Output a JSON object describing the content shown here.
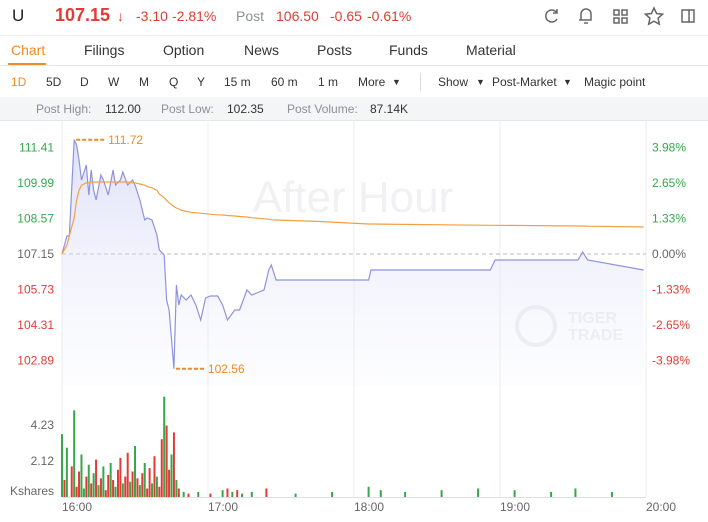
{
  "header": {
    "symbol": "U",
    "price": "107.15",
    "change": "-3.10",
    "change_pct": "-2.81%",
    "session": "Post",
    "post_price": "106.50",
    "post_change": "-0.65",
    "post_change_pct": "-0.61%"
  },
  "tabs": [
    "Chart",
    "Filings",
    "Option",
    "News",
    "Posts",
    "Funds",
    "Material"
  ],
  "periods": [
    "1D",
    "5D",
    "D",
    "W",
    "M",
    "Q",
    "Y",
    "15 m",
    "60 m",
    "1 m",
    "More"
  ],
  "toolbar": [
    "Show",
    "Post-Market",
    "Magic point"
  ],
  "stats": [
    {
      "label": "Post High:",
      "value": "112.00"
    },
    {
      "label": "Post Low:",
      "value": "102.35"
    },
    {
      "label": "Post Volume:",
      "value": "87.14K"
    }
  ],
  "chart_data": {
    "type": "line",
    "x": [
      "16:00",
      "16:02",
      "16:03",
      "16:05",
      "16:06",
      "16:07",
      "16:08",
      "16:10",
      "16:11",
      "16:12",
      "16:13",
      "16:14",
      "16:16",
      "16:17",
      "16:19",
      "16:21",
      "16:22",
      "16:24",
      "16:25",
      "16:27",
      "16:29",
      "16:30",
      "16:32",
      "16:34",
      "16:35",
      "16:37",
      "16:39",
      "16:40",
      "16:42",
      "16:43",
      "16:44",
      "16:46",
      "16:47",
      "16:48",
      "16:49",
      "16:51",
      "16:53",
      "16:55",
      "16:57",
      "16:59",
      "17:01",
      "17:04",
      "17:06",
      "17:08",
      "17:11",
      "17:13",
      "17:16",
      "17:18",
      "17:21",
      "17:23",
      "17:25",
      "17:26",
      "17:28",
      "17:46",
      "18:06",
      "18:07",
      "18:56",
      "18:58",
      "19:32",
      "19:34",
      "19:36",
      "19:59"
    ],
    "series": [
      {
        "color": "#8e93dc",
        "values": [
          107.15,
          107.87,
          107.87,
          111.72,
          111.51,
          110.91,
          110.11,
          110.71,
          109.51,
          110.51,
          109.71,
          109.31,
          110.31,
          110.11,
          109.51,
          110.51,
          109.91,
          110.11,
          110.43,
          109.91,
          110.11,
          109.91,
          109.31,
          108.51,
          108.59,
          108.51,
          107.91,
          107.31,
          107.11,
          105.31,
          104.91,
          102.56,
          105.91,
          105.11,
          105.51,
          105.31,
          105.51,
          105.11,
          104.51,
          105.39,
          105.47,
          105.47,
          105.11,
          104.51,
          104.91,
          104.91,
          105.71,
          105.51,
          105.63,
          105.71,
          106.51,
          106.71,
          106.11,
          106.11,
          106.11,
          106.51,
          106.51,
          106.91,
          106.91,
          107.23,
          106.91,
          106.51
        ]
      },
      {
        "color": "#f2a043",
        "values": [
          107.15,
          107.5,
          107.87,
          108.6,
          109.3,
          109.7,
          109.9,
          110.0,
          110.0,
          110.03,
          110.03,
          110.03,
          110.03,
          110.03,
          110.03,
          110.03,
          110.03,
          110.03,
          110.03,
          110.03,
          110.0,
          110.0,
          109.95,
          109.9,
          109.85,
          109.8,
          109.7,
          109.55,
          109.4,
          109.3,
          109.2,
          109.05,
          108.99,
          108.95,
          108.9,
          108.85,
          108.82,
          108.8,
          108.78,
          108.76,
          108.74,
          108.72,
          108.71,
          108.69,
          108.67,
          108.65,
          108.63,
          108.6,
          108.58,
          108.56,
          108.54,
          108.52,
          108.51,
          108.45,
          108.35,
          108.35,
          108.3,
          108.3,
          108.27,
          108.27,
          108.26,
          108.23
        ]
      }
    ],
    "xlim": [
      "16:00",
      "20:00"
    ],
    "xticks": [
      "16:00",
      "17:00",
      "18:00",
      "19:00",
      "20:00"
    ],
    "ylim": [
      101.91,
      112.51
    ],
    "yticks": [
      111.41,
      109.99,
      108.57,
      107.15,
      105.73,
      104.31,
      102.89
    ],
    "y2lim": [
      -4.89,
      5.0
    ],
    "y2ticks": [
      {
        "value": 3.98,
        "label": "3.98%"
      },
      {
        "value": 2.65,
        "label": "2.65%"
      },
      {
        "value": 1.33,
        "label": "1.33%"
      },
      {
        "value": 0,
        "label": "0.00%"
      },
      {
        "value": -1.33,
        "label": "-1.33%"
      },
      {
        "value": -2.65,
        "label": "-2.65%"
      },
      {
        "value": -3.98,
        "label": "-3.98%"
      }
    ],
    "baseline": 107.15,
    "high": 111.72,
    "low": 102.56,
    "watermark": "After Hour",
    "brand": [
      "TIGER",
      "TRADE"
    ],
    "up_color": "#34a84a",
    "down_color": "#e23b35",
    "grid": true,
    "volume": {
      "type": "bar",
      "unit": "Kshares",
      "ylim": [
        0,
        6.0
      ],
      "yticks": [
        2.12,
        4.23
      ],
      "x": [
        "16:00",
        "16:01",
        "16:02",
        "16:04",
        "16:05",
        "16:06",
        "16:07",
        "16:08",
        "16:09",
        "16:10",
        "16:11",
        "16:12",
        "16:13",
        "16:14",
        "16:15",
        "16:16",
        "16:17",
        "16:18",
        "16:19",
        "16:20",
        "16:21",
        "16:22",
        "16:23",
        "16:24",
        "16:25",
        "16:26",
        "16:27",
        "16:28",
        "16:29",
        "16:30",
        "16:31",
        "16:32",
        "16:33",
        "16:34",
        "16:35",
        "16:36",
        "16:37",
        "16:38",
        "16:39",
        "16:40",
        "16:41",
        "16:42",
        "16:43",
        "16:44",
        "16:45",
        "16:46",
        "16:47",
        "16:48",
        "16:50",
        "16:52",
        "16:56",
        "17:01",
        "17:06",
        "17:08",
        "17:10",
        "17:12",
        "17:14",
        "17:18",
        "17:24",
        "17:36",
        "17:51",
        "18:06",
        "18:11",
        "18:21",
        "18:36",
        "18:51",
        "19:06",
        "19:21",
        "19:31",
        "19:46"
      ],
      "values": [
        3.7,
        1.0,
        2.9,
        1.8,
        5.1,
        0.6,
        1.5,
        2.5,
        0.5,
        1.2,
        1.9,
        0.8,
        1.4,
        2.2,
        0.7,
        1.1,
        1.8,
        0.4,
        1.3,
        2.0,
        1.0,
        0.6,
        1.6,
        2.3,
        0.8,
        1.2,
        2.6,
        0.9,
        1.5,
        3.0,
        1.1,
        0.7,
        1.4,
        2.0,
        0.5,
        1.7,
        0.8,
        2.4,
        1.2,
        0.6,
        3.4,
        5.9,
        4.2,
        1.6,
        2.5,
        3.8,
        1.0,
        0.5,
        0.3,
        0.2,
        0.3,
        0.2,
        0.4,
        0.5,
        0.3,
        0.4,
        0.2,
        0.3,
        0.5,
        0.2,
        0.3,
        0.6,
        0.4,
        0.3,
        0.4,
        0.5,
        0.4,
        0.3,
        0.5,
        0.3
      ],
      "colors": [
        "#34a84a",
        "#e23b35",
        "#34a84a",
        "#e23b35",
        "#34a84a",
        "#e23b35",
        "#e23b35",
        "#34a84a",
        "#34a84a",
        "#e23b35",
        "#34a84a",
        "#e23b35",
        "#34a84a",
        "#e23b35",
        "#34a84a",
        "#e23b35",
        "#34a84a",
        "#e23b35",
        "#e23b35",
        "#34a84a",
        "#e23b35",
        "#34a84a",
        "#e23b35",
        "#e23b35",
        "#34a84a",
        "#e23b35",
        "#e23b35",
        "#34a84a",
        "#e23b35",
        "#34a84a",
        "#e23b35",
        "#34a84a",
        "#e23b35",
        "#34a84a",
        "#e23b35",
        "#e23b35",
        "#34a84a",
        "#e23b35",
        "#34a84a",
        "#e23b35",
        "#e23b35",
        "#34a84a",
        "#e23b35",
        "#e23b35",
        "#34a84a",
        "#e23b35",
        "#34a84a",
        "#e23b35",
        "#34a84a",
        "#e23b35",
        "#34a84a",
        "#e23b35",
        "#34a84a",
        "#e23b35",
        "#34a84a",
        "#e23b35",
        "#34a84a",
        "#34a84a",
        "#e23b35",
        "#34a84a",
        "#34a84a",
        "#34a84a",
        "#34a84a",
        "#34a84a",
        "#34a84a",
        "#34a84a",
        "#34a84a",
        "#34a84a",
        "#34a84a",
        "#34a84a"
      ]
    }
  }
}
